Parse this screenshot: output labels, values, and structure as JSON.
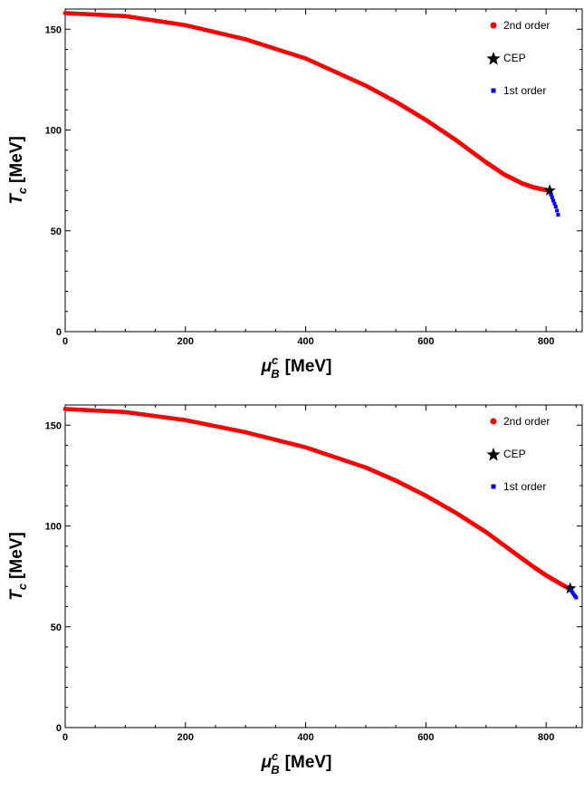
{
  "chart_data": [
    {
      "type": "scatter",
      "xlabel": {
        "main": "μ",
        "sup": "c",
        "sub": "B",
        "unit": "[MeV]"
      },
      "ylabel": {
        "main": "T",
        "sub": "c",
        "unit": "[MeV]"
      },
      "xlim": [
        0,
        860
      ],
      "ylim": [
        0,
        160
      ],
      "xticks": [
        0,
        200,
        400,
        600,
        800
      ],
      "xtick_labels": [
        "0",
        "200",
        "400",
        "600",
        "800"
      ],
      "yticks": [
        0,
        50,
        100,
        150
      ],
      "ytick_labels": [
        "0",
        "50",
        "100",
        "150"
      ],
      "legend_position": "top-right",
      "legend": [
        {
          "label": "2nd order",
          "marker": "circle",
          "color": "#ff0000"
        },
        {
          "label": "CEP",
          "marker": "star",
          "color": "#000000"
        },
        {
          "label": "1st order",
          "marker": "square",
          "color": "#0000ff"
        }
      ],
      "series": [
        {
          "name": "2nd order",
          "color": "#ff0000",
          "x": [
            0,
            100,
            200,
            300,
            400,
            500,
            550,
            600,
            650,
            700,
            730,
            760,
            780,
            795,
            805
          ],
          "y": [
            158,
            156.5,
            152,
            145,
            135.5,
            122,
            114,
            105,
            95,
            84,
            78,
            73.5,
            71.5,
            70.5,
            70
          ]
        },
        {
          "name": "CEP",
          "color": "#000000",
          "x": [
            806
          ],
          "y": [
            70
          ]
        },
        {
          "name": "1st order",
          "color": "#0000ff",
          "x": [
            808,
            810,
            812,
            814,
            816,
            818,
            820
          ],
          "y": [
            68,
            66.5,
            65,
            63.5,
            62,
            60,
            58
          ]
        }
      ]
    },
    {
      "type": "scatter",
      "xlabel": {
        "main": "μ",
        "sup": "c",
        "sub": "B",
        "unit": "[MeV]"
      },
      "ylabel": {
        "main": "T",
        "sub": "c",
        "unit": "[MeV]"
      },
      "xlim": [
        0,
        860
      ],
      "ylim": [
        0,
        160
      ],
      "xticks": [
        0,
        200,
        400,
        600,
        800
      ],
      "xtick_labels": [
        "0",
        "200",
        "400",
        "600",
        "800"
      ],
      "yticks": [
        0,
        50,
        100,
        150
      ],
      "ytick_labels": [
        "0",
        "50",
        "100",
        "150"
      ],
      "legend_position": "top-right",
      "legend": [
        {
          "label": "2nd order",
          "marker": "circle",
          "color": "#ff0000"
        },
        {
          "label": "CEP",
          "marker": "star",
          "color": "#000000"
        },
        {
          "label": "1st order",
          "marker": "square",
          "color": "#0000ff"
        }
      ],
      "series": [
        {
          "name": "2nd order",
          "color": "#ff0000",
          "x": [
            0,
            100,
            200,
            300,
            400,
            500,
            550,
            600,
            650,
            700,
            750,
            780,
            800,
            820,
            838
          ],
          "y": [
            158,
            156.5,
            152.5,
            146.5,
            139,
            129,
            122.5,
            115,
            106.5,
            97,
            86,
            79.5,
            75.5,
            72,
            69
          ]
        },
        {
          "name": "CEP",
          "color": "#000000",
          "x": [
            840
          ],
          "y": [
            69
          ]
        },
        {
          "name": "1st order",
          "color": "#0000ff",
          "x": [
            842,
            844,
            846,
            848,
            850
          ],
          "y": [
            68,
            67,
            66,
            65.2,
            64.5
          ]
        }
      ]
    }
  ]
}
